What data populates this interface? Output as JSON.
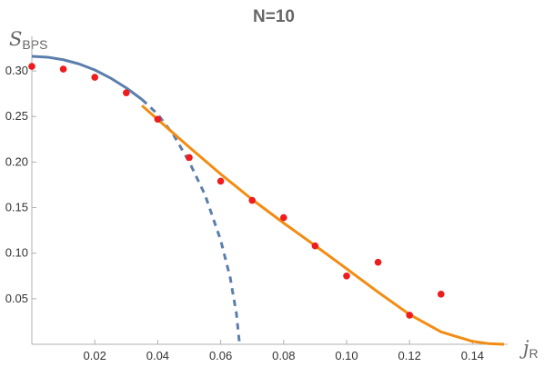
{
  "chart_data": {
    "type": "line",
    "title": "N=10",
    "xlabel": {
      "main": "j",
      "sub": "R"
    },
    "ylabel": {
      "main": "S",
      "sub": "BPS"
    },
    "xlim": [
      0,
      0.15
    ],
    "ylim": [
      0,
      0.33
    ],
    "x_ticks": [
      {
        "value": 0.02,
        "label": "0.02"
      },
      {
        "value": 0.04,
        "label": "0.04"
      },
      {
        "value": 0.06,
        "label": "0.06"
      },
      {
        "value": 0.08,
        "label": "0.08"
      },
      {
        "value": 0.1,
        "label": "0.10"
      },
      {
        "value": 0.12,
        "label": "0.12"
      },
      {
        "value": 0.14,
        "label": "0.14"
      }
    ],
    "y_ticks": [
      {
        "value": 0.05,
        "label": "0.05"
      },
      {
        "value": 0.1,
        "label": "0.10"
      },
      {
        "value": 0.15,
        "label": "0.15"
      },
      {
        "value": 0.2,
        "label": "0.20"
      },
      {
        "value": 0.25,
        "label": "0.25"
      },
      {
        "value": 0.3,
        "label": "0.30"
      }
    ],
    "grid": false,
    "series": [
      {
        "type": "line",
        "color": "#5b7fad",
        "style": "solid",
        "x": [
          0,
          0.005,
          0.01,
          0.015,
          0.02,
          0.025,
          0.03,
          0.035
        ],
        "y": [
          0.316,
          0.3151,
          0.3123,
          0.3077,
          0.3011,
          0.2922,
          0.2814,
          0.2687
        ]
      },
      {
        "type": "line",
        "color": "#5b7fad",
        "style": "dashed",
        "x": [
          0.035,
          0.04,
          0.045,
          0.05,
          0.055,
          0.06,
          0.063,
          0.065,
          0.066
        ],
        "y": [
          0.2687,
          0.2525,
          0.2298,
          0.2002,
          0.1642,
          0.1143,
          0.0735,
          0.0336,
          0.0
        ]
      },
      {
        "type": "line",
        "color": "#f28c13",
        "style": "solid",
        "x": [
          0.035,
          0.04,
          0.05,
          0.06,
          0.07,
          0.08,
          0.09,
          0.1,
          0.11,
          0.12,
          0.13,
          0.14,
          0.145,
          0.15
        ],
        "y": [
          0.262,
          0.2467,
          0.2164,
          0.1868,
          0.1589,
          0.1331,
          0.1083,
          0.0829,
          0.0573,
          0.0327,
          0.0136,
          0.0032,
          0.0008,
          0.0
        ]
      },
      {
        "type": "scatter",
        "color": "#ee1c1c",
        "x": [
          0,
          0.01,
          0.02,
          0.03,
          0.04,
          0.05,
          0.06,
          0.07,
          0.08,
          0.09,
          0.1,
          0.11,
          0.12,
          0.13
        ],
        "y": [
          0.305,
          0.302,
          0.293,
          0.276,
          0.247,
          0.205,
          0.179,
          0.158,
          0.139,
          0.108,
          0.075,
          0.09,
          0.032,
          0.055
        ]
      }
    ]
  }
}
